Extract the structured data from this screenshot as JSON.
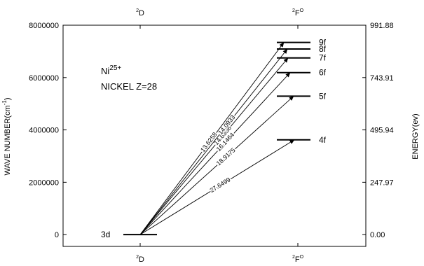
{
  "chart_data": {
    "type": "energy-level-diagram",
    "annotation": {
      "ion_base": "Ni",
      "ion_charge": "25+",
      "element_line": "NICKEL Z=28"
    },
    "left_axis": {
      "label": "WAVE NUMBER(cm",
      "label_exp": "-1",
      "label_close": ")",
      "range": [
        -450000,
        8000000
      ],
      "ticks": [
        {
          "value": 0,
          "label": "0"
        },
        {
          "value": 2000000,
          "label": "2000000"
        },
        {
          "value": 4000000,
          "label": "4000000"
        },
        {
          "value": 6000000,
          "label": "6000000"
        },
        {
          "value": 8000000,
          "label": "8000000"
        }
      ]
    },
    "right_axis": {
      "label": "ENERGY(ev)",
      "ticks": [
        {
          "value": 0,
          "label": "0.00"
        },
        {
          "value": 2000000,
          "label": "247.97"
        },
        {
          "value": 4000000,
          "label": "495.94"
        },
        {
          "value": 6000000,
          "label": "743.91"
        },
        {
          "value": 8000000,
          "label": "991.88"
        }
      ]
    },
    "columns": [
      {
        "sup": "2",
        "base": "D",
        "super_after": ""
      },
      {
        "sup": "2",
        "base": "F",
        "super_after": "O"
      }
    ],
    "lower_level": {
      "label": "3d",
      "wavenumber": 0
    },
    "upper_levels": [
      {
        "label": "4f",
        "wavenumber": 3620000,
        "transition_label": "27.6499"
      },
      {
        "label": "5f",
        "wavenumber": 5290000,
        "transition_label": "18.9175"
      },
      {
        "label": "6f",
        "wavenumber": 6190000,
        "transition_label": "16.1464"
      },
      {
        "label": "7f",
        "wavenumber": 6750000,
        "transition_label": "14.8358"
      },
      {
        "label": "8f",
        "wavenumber": 7090000,
        "transition_label": "14.0933"
      },
      {
        "label": "9f",
        "wavenumber": 7340000,
        "transition_label": "13.6258"
      }
    ]
  }
}
